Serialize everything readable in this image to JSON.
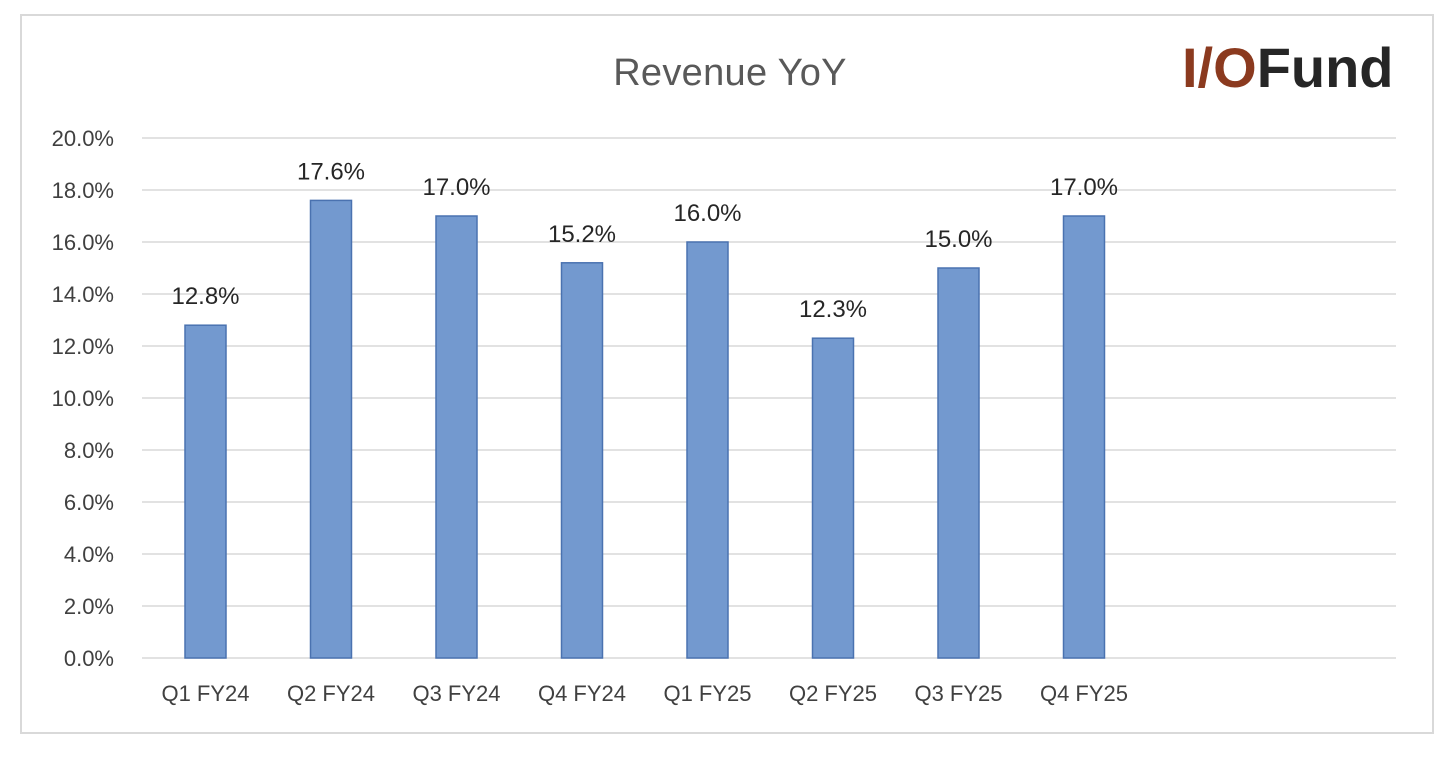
{
  "logo": {
    "accent": "I/O",
    "rest": "Fund"
  },
  "chart_data": {
    "type": "bar",
    "title": "Revenue YoY",
    "categories": [
      "Q1 FY24",
      "Q2 FY24",
      "Q3 FY24",
      "Q4 FY24",
      "Q1 FY25",
      "Q2 FY25",
      "Q3 FY25",
      "Q4 FY25"
    ],
    "values": [
      12.8,
      17.6,
      17.0,
      15.2,
      16.0,
      12.3,
      15.0,
      17.0
    ],
    "data_labels": [
      "12.8%",
      "17.6%",
      "17.0%",
      "15.2%",
      "16.0%",
      "12.3%",
      "15.0%",
      "17.0%"
    ],
    "yticks": [
      0,
      2,
      4,
      6,
      8,
      10,
      12,
      14,
      16,
      18,
      20
    ],
    "ytick_labels": [
      "0.0%",
      "2.0%",
      "4.0%",
      "6.0%",
      "8.0%",
      "10.0%",
      "12.0%",
      "14.0%",
      "16.0%",
      "18.0%",
      "20.0%"
    ],
    "ylim": [
      0,
      20
    ],
    "grid": true,
    "legend": "none",
    "colors": {
      "bar": "#7399cf",
      "bar_edge": "#4a72b0",
      "grid": "#d9d9d9"
    }
  }
}
